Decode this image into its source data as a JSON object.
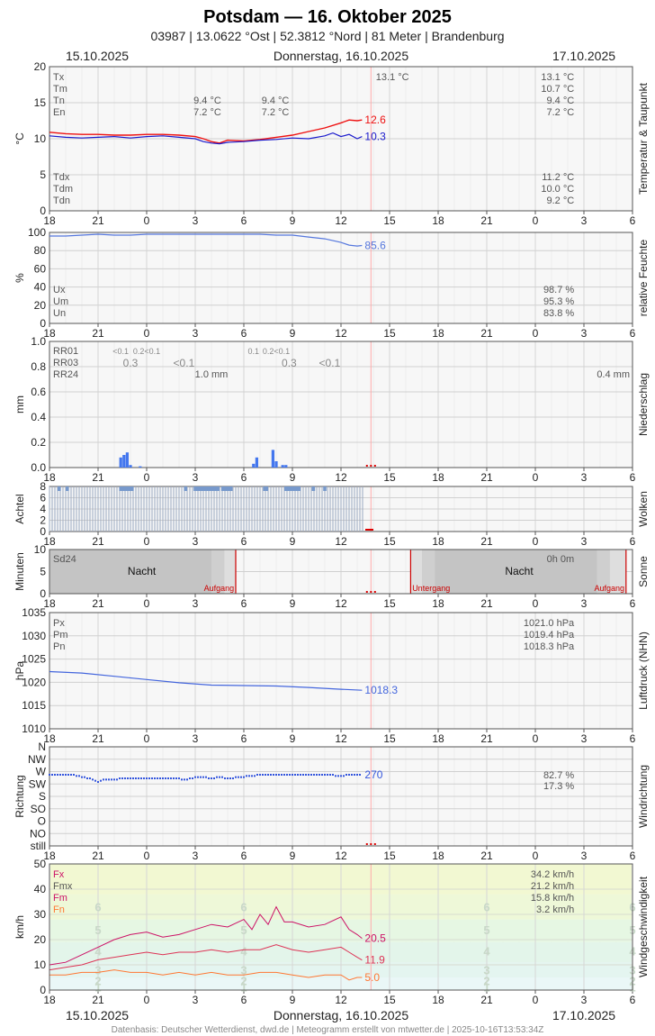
{
  "header": {
    "title": "Potsdam  —  16. Oktober 2025",
    "subtitle": "03987  |  13.0622 °Ost  |  52.3812 °Nord  |  81 Meter  |  Brandenburg"
  },
  "dates": {
    "left": "15.10.2025",
    "center": "Donnerstag, 16.10.2025",
    "right": "17.10.2025"
  },
  "footer": "Datenbasis: Deutscher Wetterdienst, dwd.de | Meteogramm erstellt von mtwetter.de | 2025-10-16T13:53:34Z",
  "colors": {
    "grid": "#dddddd",
    "frame": "#555555",
    "temp": "#ee1111",
    "dew": "#1a1acc",
    "humidity": "#5577dd",
    "precip": "#4477ee",
    "cloud": "#7799cc",
    "sun_night": "#c4c4c4",
    "pressure": "#4466dd",
    "wind_dir": "#3355dd",
    "fx": "#cc1166",
    "fm": "#dd3355",
    "fn": "#ff7733",
    "now_marker": "#ffaaaa",
    "sunline": "#cc0000"
  },
  "chart_data": [
    {
      "type": "line",
      "title": "Temperatur & Taupunkt",
      "ylabel": "°C",
      "ylim": [
        0,
        20
      ],
      "yticks": [
        "20",
        "15",
        "10",
        "5",
        "0"
      ],
      "x_ticks": [
        "18",
        "21",
        "0",
        "3",
        "6",
        "9",
        "12",
        "15",
        "18",
        "21",
        "0",
        "3",
        "6"
      ],
      "x_range_hours": [
        -6,
        30
      ],
      "series": [
        {
          "name": "temperature",
          "color": "#ee1111",
          "last_label": "12.6",
          "x": [
            -6,
            -5,
            -4,
            -3,
            -2,
            -1,
            0,
            1,
            2,
            3,
            3.5,
            4,
            4.5,
            5,
            6,
            7,
            8,
            9,
            10,
            11,
            12,
            12.5,
            13,
            13.3
          ],
          "values": [
            10.9,
            10.7,
            10.6,
            10.6,
            10.5,
            10.5,
            10.6,
            10.6,
            10.5,
            10.3,
            10.0,
            9.6,
            9.4,
            9.8,
            9.7,
            9.9,
            10.2,
            10.5,
            11.0,
            11.5,
            12.2,
            12.6,
            12.5,
            12.6
          ]
        },
        {
          "name": "dewpoint",
          "color": "#1a1acc",
          "last_label": "10.3",
          "x": [
            -6,
            -5,
            -4,
            -3,
            -2,
            -1,
            0,
            1,
            2,
            3,
            3.5,
            4,
            4.5,
            5,
            6,
            7,
            8,
            9,
            10,
            11,
            11.5,
            12,
            12.5,
            13,
            13.3
          ],
          "values": [
            10.4,
            10.2,
            10.1,
            10.2,
            10.3,
            10.1,
            10.3,
            10.4,
            10.2,
            10.0,
            9.6,
            9.4,
            9.3,
            9.5,
            9.6,
            9.8,
            9.9,
            10.1,
            10.0,
            10.4,
            10.8,
            10.3,
            10.6,
            10.0,
            10.3
          ]
        }
      ],
      "stats_top": [
        {
          "label": "Tx",
          "values": [
            "",
            "",
            "13.1 °C",
            "13.1 °C"
          ]
        },
        {
          "label": "Tm",
          "values": [
            "",
            "",
            "",
            "10.7 °C"
          ]
        },
        {
          "label": "Tn",
          "values": [
            "9.4 °C",
            "9.4 °C",
            "",
            "9.4 °C"
          ]
        },
        {
          "label": "En",
          "values": [
            "7.2 °C",
            "7.2 °C",
            "",
            "7.2 °C"
          ]
        }
      ],
      "stats_bottom": [
        {
          "label": "Tdx",
          "value": "11.2 °C"
        },
        {
          "label": "Tdm",
          "value": "10.0 °C"
        },
        {
          "label": "Tdn",
          "value": "9.2 °C"
        }
      ],
      "side_label": "Temperatur & Taupunkt"
    },
    {
      "type": "line",
      "title": "relative Feuchte",
      "ylabel": "%",
      "ylim": [
        0,
        100
      ],
      "yticks": [
        "100",
        "80",
        "60",
        "40",
        "20",
        "0"
      ],
      "series": [
        {
          "name": "humidity",
          "color": "#5577dd",
          "last_label": "85.6",
          "x": [
            -6,
            -5,
            -4,
            -3,
            -2,
            -1,
            0,
            1,
            2,
            3,
            4,
            5,
            6,
            7,
            8,
            9,
            10,
            11,
            11.5,
            12,
            12.5,
            13,
            13.3
          ],
          "values": [
            96,
            96,
            97,
            98,
            97,
            97,
            98,
            98,
            98,
            98,
            98,
            98,
            98,
            98,
            97,
            97,
            95,
            93,
            91,
            89,
            86,
            85,
            85.6
          ]
        }
      ],
      "stats": [
        {
          "label": "Ux",
          "value": "98.7 %"
        },
        {
          "label": "Um",
          "value": "95.3 %"
        },
        {
          "label": "Un",
          "value": "83.8 %"
        }
      ],
      "side_label": "relative Feuchte"
    },
    {
      "type": "bar",
      "title": "Niederschlag",
      "ylabel": "mm",
      "ylim": [
        0,
        1.0
      ],
      "yticks": [
        "1.0",
        "0.8",
        "0.6",
        "0.4",
        "0.2",
        "0.0"
      ],
      "bars": {
        "x": [
          -1.6,
          -1.4,
          -1.2,
          -1.0,
          -0.4,
          6.6,
          6.8,
          7.8,
          8.0,
          8.4,
          8.6
        ],
        "values": [
          0.08,
          0.1,
          0.12,
          0.02,
          0.01,
          0.03,
          0.08,
          0.14,
          0.05,
          0.02,
          0.02
        ]
      },
      "labels_row1": [
        {
          "label": "RR01",
          "values": [
            "<0.1",
            "0.2<0.1",
            "0.1",
            "0.2<0.1"
          ]
        },
        {
          "label": "RR03",
          "values": [
            "0.3",
            "<0.1",
            "0.3",
            "<0.1"
          ]
        },
        {
          "label": "RR24",
          "values": [
            "1.0 mm",
            "0.4 mm"
          ]
        }
      ],
      "side_label": "Niederschlag"
    },
    {
      "type": "bar",
      "title": "Wolken",
      "ylabel": "Achtel",
      "ylim": [
        0,
        8
      ],
      "yticks": [
        "8",
        "6",
        "4",
        "2",
        "0"
      ],
      "cloud_cover_octas": {
        "x_start": -6,
        "x_end": 13.4,
        "value": 8
      },
      "side_label": "Wolken"
    },
    {
      "type": "area",
      "title": "Sonne",
      "ylabel": "Minuten",
      "ylim": [
        0,
        10
      ],
      "yticks": [
        "10",
        "5",
        "0"
      ],
      "night_label": "Nacht",
      "sunrise_label": "Aufgang",
      "sunset_label": "Untergang",
      "sd24_label": "Sd24",
      "sd24_value": "0h 0m",
      "night_spans": [
        [
          -6,
          5.5
        ],
        [
          16.3,
          29.6
        ]
      ],
      "sunrise_x": [
        5.5,
        29.6
      ],
      "sunset_x": [
        16.3
      ],
      "side_label": "Sonne"
    },
    {
      "type": "line",
      "title": "Luftdruck (NHN)",
      "ylabel": "hPa",
      "ylim": [
        1010,
        1035
      ],
      "yticks": [
        "1035",
        "1030",
        "1025",
        "1020",
        "1015",
        "1010"
      ],
      "series": [
        {
          "name": "pressure",
          "color": "#4466dd",
          "last_label": "1018.3",
          "x": [
            -6,
            -4,
            -2,
            0,
            2,
            4,
            6,
            8,
            10,
            12,
            13.3
          ],
          "values": [
            1022.3,
            1022.0,
            1021.3,
            1020.6,
            1019.9,
            1019.4,
            1019.3,
            1019.2,
            1018.9,
            1018.5,
            1018.3
          ]
        }
      ],
      "stats": [
        {
          "label": "Px",
          "value": "1021.0 hPa"
        },
        {
          "label": "Pm",
          "value": "1019.4 hPa"
        },
        {
          "label": "Pn",
          "value": "1018.3 hPa"
        }
      ],
      "side_label": "Luftdruck (NHN)"
    },
    {
      "type": "scatter",
      "title": "Windrichtung",
      "ylabel": "Richtung",
      "yticks": [
        "N",
        "NW",
        "W",
        "SW",
        "S",
        "SO",
        "O",
        "NO",
        "still"
      ],
      "last_label": "270",
      "wind_direction_deg": {
        "x": [
          -6,
          -4.5,
          -3.3,
          -3,
          -2.7,
          -2.3,
          -1.5,
          -0.5,
          0.5,
          1.5,
          2.5,
          3.3,
          4,
          4.5,
          5,
          6,
          7,
          8,
          9,
          10,
          11,
          12,
          12.5,
          13.3
        ],
        "values": [
          270,
          270,
          250,
          240,
          248,
          248,
          255,
          255,
          255,
          255,
          250,
          262,
          255,
          260,
          255,
          262,
          270,
          270,
          270,
          270,
          270,
          265,
          270,
          270
        ]
      },
      "stats": [
        "82.7 %",
        "17.3 %"
      ],
      "side_label": "Windrichtung"
    },
    {
      "type": "line",
      "title": "Windgeschwindigkeit",
      "ylabel": "km/h",
      "ylim": [
        0,
        50
      ],
      "yticks": [
        "50",
        "40",
        "30",
        "20",
        "10",
        "0"
      ],
      "bft_labels": [
        "6",
        "5",
        "4",
        "3",
        "2",
        "1"
      ],
      "series": [
        {
          "name": "Fx",
          "color": "#cc1166",
          "last_label": "20.5",
          "x": [
            -6,
            -5,
            -4,
            -3,
            -2,
            -1,
            0,
            1,
            2,
            3,
            4,
            5,
            6,
            6.5,
            7,
            7.5,
            8,
            8.5,
            9,
            10,
            11,
            12,
            12.5,
            13,
            13.3
          ],
          "values": [
            10,
            11,
            14,
            17,
            20,
            22,
            23,
            21,
            22,
            24,
            26,
            25,
            28,
            24,
            30,
            26,
            33,
            27,
            27,
            25,
            26,
            29,
            24,
            22,
            20.5
          ]
        },
        {
          "name": "Fm",
          "color": "#dd3355",
          "last_label": "11.9",
          "x": [
            -6,
            -5,
            -4,
            -3,
            -2,
            -1,
            0,
            1,
            2,
            3,
            4,
            5,
            6,
            7,
            8,
            9,
            10,
            11,
            12,
            12.5,
            13,
            13.3
          ],
          "values": [
            8,
            9,
            10,
            12,
            13,
            14,
            15,
            14,
            15,
            15,
            16,
            15,
            16,
            16,
            18,
            16,
            15,
            16,
            17,
            15,
            13,
            11.9
          ]
        },
        {
          "name": "Fn",
          "color": "#ff7733",
          "last_label": "5.0",
          "x": [
            -6,
            -5,
            -4,
            -3,
            -2,
            -1,
            0,
            1,
            2,
            3,
            4,
            5,
            6,
            7,
            8,
            9,
            10,
            11,
            12,
            12.5,
            13,
            13.3
          ],
          "values": [
            6,
            6,
            7,
            7,
            8,
            7,
            7,
            6,
            7,
            6,
            7,
            6,
            6,
            7,
            7,
            6,
            5,
            6,
            6,
            4,
            5,
            5.0
          ]
        }
      ],
      "stats": [
        {
          "label": "Fx",
          "value": "34.2 km/h",
          "color": "#cc1166"
        },
        {
          "label": "Fmx",
          "value": "21.2 km/h",
          "color": "#555555"
        },
        {
          "label": "Fm",
          "value": "15.8 km/h",
          "color": "#cc1166"
        },
        {
          "label": "Fn",
          "value": "3.2 km/h",
          "color": "#ff7733"
        }
      ],
      "side_label": "Windgeschwindigkeit"
    }
  ]
}
